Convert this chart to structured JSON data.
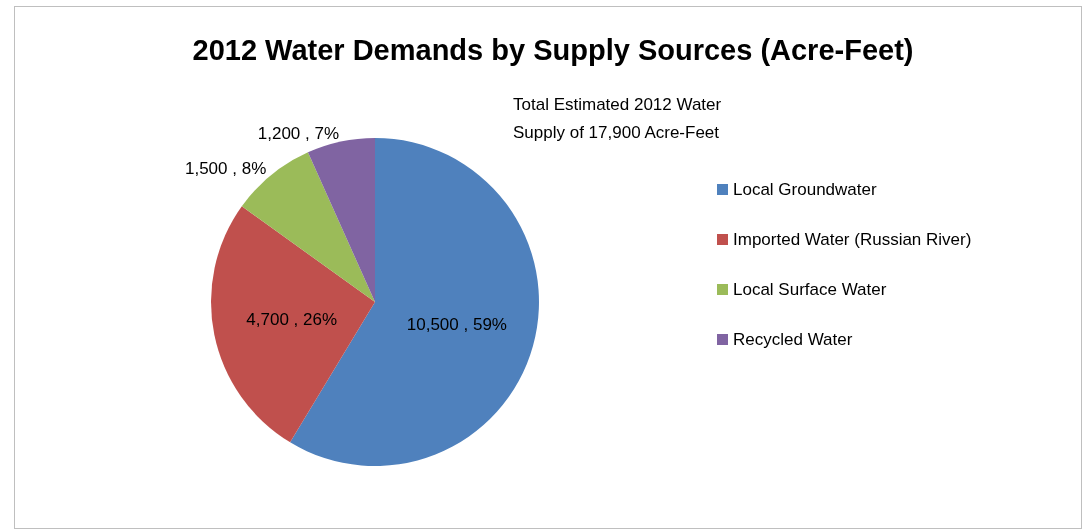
{
  "chart_data": {
    "type": "pie",
    "title": "2012 Water Demands by Supply Sources (Acre-Feet)",
    "categories": [
      "Local Groundwater",
      "Imported Water (Russian River)",
      "Local Surface Water",
      "Recycled Water"
    ],
    "values": [
      10500,
      4700,
      1500,
      1200
    ],
    "colors": [
      "#4f81bd",
      "#c0504d",
      "#9bbb59",
      "#8064a2"
    ],
    "value_labels": [
      "10,500 , 59%",
      "4,700 , 26%",
      "1,500 , 8%",
      "1,200 , 7%"
    ],
    "annotations": [
      "Total Estimated 2012 Water\nSupply of 17,900 Acre-Feet"
    ],
    "legend": "right"
  }
}
